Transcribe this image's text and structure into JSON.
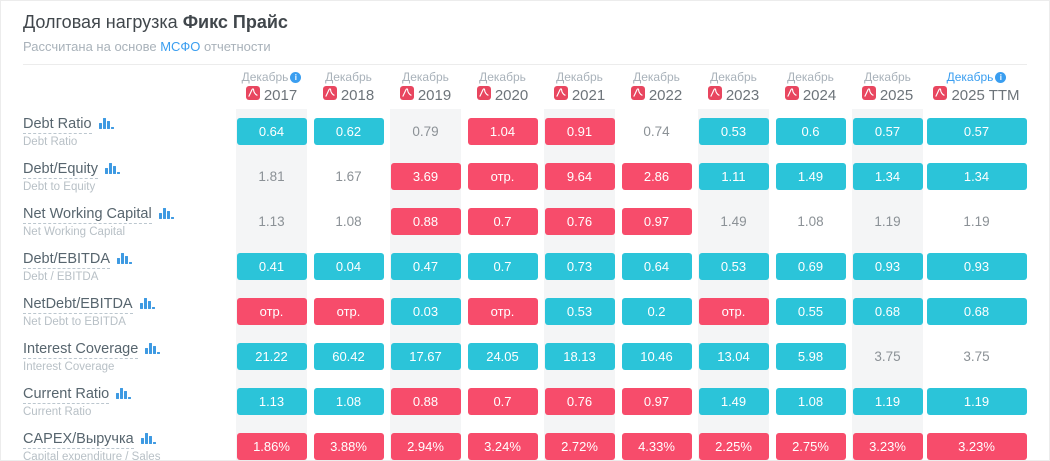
{
  "header": {
    "title_regular": "Долговая нагрузка",
    "title_bold": "Фикс Прайс",
    "subtitle_prefix": "Рассчитана на основе",
    "subtitle_link": "МСФО",
    "subtitle_suffix": "отчетности"
  },
  "colors": {
    "good": "#2bc4d9",
    "bad": "#f74c6b",
    "stripe": "#f4f5f6",
    "link_blue": "#3a9ef0",
    "pdf_red": "#e8465f",
    "icon_blue": "#3e9ae2"
  },
  "table": {
    "columns": [
      {
        "month": "Декабрь",
        "year": "2017",
        "info": true,
        "highlight": false
      },
      {
        "month": "Декабрь",
        "year": "2018",
        "info": false,
        "highlight": false
      },
      {
        "month": "Декабрь",
        "year": "2019",
        "info": false,
        "highlight": false
      },
      {
        "month": "Декабрь",
        "year": "2020",
        "info": false,
        "highlight": false
      },
      {
        "month": "Декабрь",
        "year": "2021",
        "info": false,
        "highlight": false
      },
      {
        "month": "Декабрь",
        "year": "2022",
        "info": false,
        "highlight": false
      },
      {
        "month": "Декабрь",
        "year": "2023",
        "info": false,
        "highlight": false
      },
      {
        "month": "Декабрь",
        "year": "2024",
        "info": false,
        "highlight": false
      },
      {
        "month": "Декабрь",
        "year": "2025",
        "info": false,
        "highlight": false
      },
      {
        "month": "Декабрь",
        "year": "2025 TTM",
        "info": true,
        "highlight": true
      }
    ],
    "rows": [
      {
        "label": "Debt Ratio",
        "sublabel": "Debt Ratio",
        "cells": [
          {
            "value": "0.64",
            "style": "good"
          },
          {
            "value": "0.62",
            "style": "good"
          },
          {
            "value": "0.79",
            "style": "plain"
          },
          {
            "value": "1.04",
            "style": "bad"
          },
          {
            "value": "0.91",
            "style": "bad"
          },
          {
            "value": "0.74",
            "style": "plain"
          },
          {
            "value": "0.53",
            "style": "good"
          },
          {
            "value": "0.6",
            "style": "good"
          },
          {
            "value": "0.57",
            "style": "good"
          },
          {
            "value": "0.57",
            "style": "good"
          }
        ]
      },
      {
        "label": "Debt/Equity",
        "sublabel": "Debt to Equity",
        "cells": [
          {
            "value": "1.81",
            "style": "plain"
          },
          {
            "value": "1.67",
            "style": "plain"
          },
          {
            "value": "3.69",
            "style": "bad"
          },
          {
            "value": "отр.",
            "style": "bad"
          },
          {
            "value": "9.64",
            "style": "bad"
          },
          {
            "value": "2.86",
            "style": "bad"
          },
          {
            "value": "1.11",
            "style": "good"
          },
          {
            "value": "1.49",
            "style": "good"
          },
          {
            "value": "1.34",
            "style": "good"
          },
          {
            "value": "1.34",
            "style": "good"
          }
        ]
      },
      {
        "label": "Net Working Capital",
        "sublabel": "Net Working Capital",
        "cells": [
          {
            "value": "1.13",
            "style": "plain"
          },
          {
            "value": "1.08",
            "style": "plain"
          },
          {
            "value": "0.88",
            "style": "bad"
          },
          {
            "value": "0.7",
            "style": "bad"
          },
          {
            "value": "0.76",
            "style": "bad"
          },
          {
            "value": "0.97",
            "style": "bad"
          },
          {
            "value": "1.49",
            "style": "plain"
          },
          {
            "value": "1.08",
            "style": "plain"
          },
          {
            "value": "1.19",
            "style": "plain"
          },
          {
            "value": "1.19",
            "style": "plain"
          }
        ]
      },
      {
        "label": "Debt/EBITDA",
        "sublabel": "Debt / EBITDA",
        "cells": [
          {
            "value": "0.41",
            "style": "good"
          },
          {
            "value": "0.04",
            "style": "good"
          },
          {
            "value": "0.47",
            "style": "good"
          },
          {
            "value": "0.7",
            "style": "good"
          },
          {
            "value": "0.73",
            "style": "good"
          },
          {
            "value": "0.64",
            "style": "good"
          },
          {
            "value": "0.53",
            "style": "good"
          },
          {
            "value": "0.69",
            "style": "good"
          },
          {
            "value": "0.93",
            "style": "good"
          },
          {
            "value": "0.93",
            "style": "good"
          }
        ]
      },
      {
        "label": "NetDebt/EBITDA",
        "sublabel": "Net Debt to EBITDA",
        "cells": [
          {
            "value": "отр.",
            "style": "bad"
          },
          {
            "value": "отр.",
            "style": "bad"
          },
          {
            "value": "0.03",
            "style": "good"
          },
          {
            "value": "отр.",
            "style": "bad"
          },
          {
            "value": "0.53",
            "style": "good"
          },
          {
            "value": "0.2",
            "style": "good"
          },
          {
            "value": "отр.",
            "style": "bad"
          },
          {
            "value": "0.55",
            "style": "good"
          },
          {
            "value": "0.68",
            "style": "good"
          },
          {
            "value": "0.68",
            "style": "good"
          }
        ]
      },
      {
        "label": "Interest Coverage",
        "sublabel": "Interest Coverage",
        "cells": [
          {
            "value": "21.22",
            "style": "good"
          },
          {
            "value": "60.42",
            "style": "good"
          },
          {
            "value": "17.67",
            "style": "good"
          },
          {
            "value": "24.05",
            "style": "good"
          },
          {
            "value": "18.13",
            "style": "good"
          },
          {
            "value": "10.46",
            "style": "good"
          },
          {
            "value": "13.04",
            "style": "good"
          },
          {
            "value": "5.98",
            "style": "good"
          },
          {
            "value": "3.75",
            "style": "plain"
          },
          {
            "value": "3.75",
            "style": "plain"
          }
        ]
      },
      {
        "label": "Current Ratio",
        "sublabel": "Current Ratio",
        "cells": [
          {
            "value": "1.13",
            "style": "good"
          },
          {
            "value": "1.08",
            "style": "good"
          },
          {
            "value": "0.88",
            "style": "bad"
          },
          {
            "value": "0.7",
            "style": "bad"
          },
          {
            "value": "0.76",
            "style": "bad"
          },
          {
            "value": "0.97",
            "style": "bad"
          },
          {
            "value": "1.49",
            "style": "good"
          },
          {
            "value": "1.08",
            "style": "good"
          },
          {
            "value": "1.19",
            "style": "good"
          },
          {
            "value": "1.19",
            "style": "good"
          }
        ]
      },
      {
        "label": "CAPEX/Выручка",
        "sublabel": "Capital expenditure / Sales",
        "cells": [
          {
            "value": "1.86%",
            "style": "bad"
          },
          {
            "value": "3.88%",
            "style": "bad"
          },
          {
            "value": "2.94%",
            "style": "bad"
          },
          {
            "value": "3.24%",
            "style": "bad"
          },
          {
            "value": "2.72%",
            "style": "bad"
          },
          {
            "value": "4.33%",
            "style": "bad"
          },
          {
            "value": "2.25%",
            "style": "bad"
          },
          {
            "value": "2.75%",
            "style": "bad"
          },
          {
            "value": "3.23%",
            "style": "bad"
          },
          {
            "value": "3.23%",
            "style": "bad"
          }
        ]
      }
    ]
  }
}
